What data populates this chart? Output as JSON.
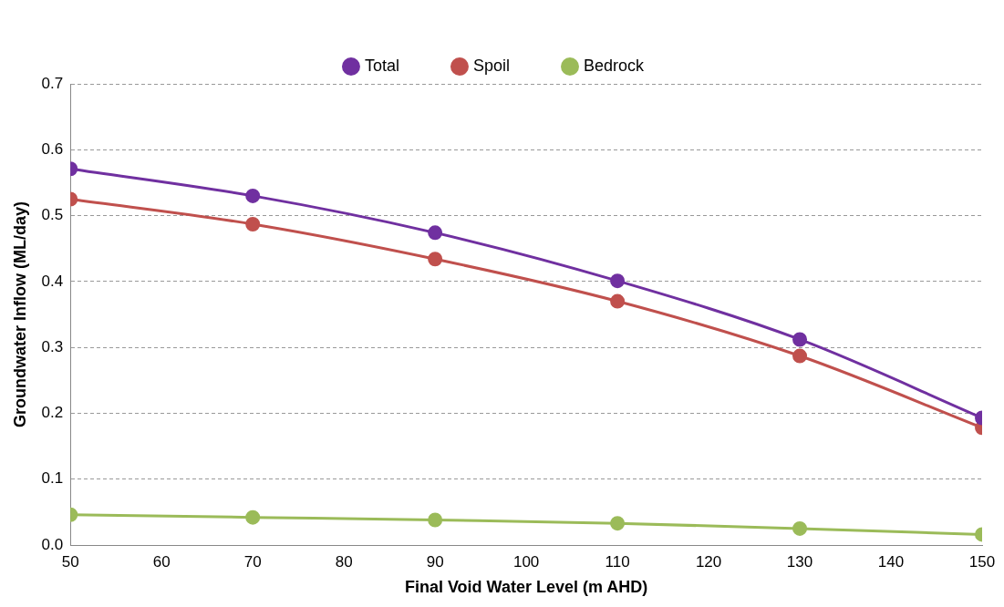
{
  "chart_data": {
    "type": "line",
    "xlabel": "Final Void Water Level (m AHD)",
    "ylabel": "Groundwater Inflow (ML/day)",
    "x": [
      50,
      70,
      90,
      110,
      130,
      150
    ],
    "series": [
      {
        "name": "Total",
        "color": "#7030a0",
        "values": [
          0.571,
          0.53,
          0.474,
          0.401,
          0.312,
          0.193
        ]
      },
      {
        "name": "Spoil",
        "color": "#c0504d",
        "values": [
          0.525,
          0.487,
          0.434,
          0.37,
          0.287,
          0.178
        ]
      },
      {
        "name": "Bedrock",
        "color": "#9bbb59",
        "values": [
          0.046,
          0.042,
          0.038,
          0.033,
          0.025,
          0.016
        ]
      }
    ],
    "xlim": [
      50,
      150
    ],
    "xticks": [
      50,
      60,
      70,
      80,
      90,
      100,
      110,
      120,
      130,
      140,
      150
    ],
    "ylim": [
      0,
      0.7
    ],
    "yticks": [
      {
        "value": 0,
        "label": "0.0"
      },
      0.1,
      0.2,
      0.3,
      0.4,
      0.5,
      0.6,
      0.7
    ],
    "grid": "y",
    "legend": "top",
    "marker": "circle",
    "line_style": "solid"
  }
}
